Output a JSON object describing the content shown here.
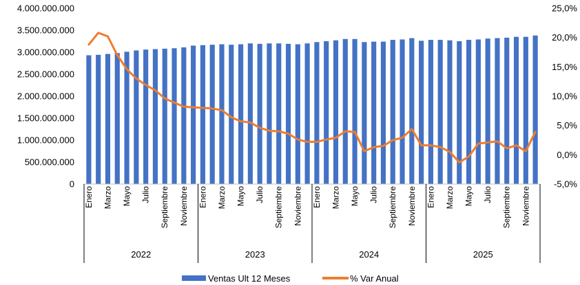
{
  "chart_data": {
    "type": "bar+line",
    "title": "",
    "years": [
      "2022",
      "2023",
      "2024",
      "2025"
    ],
    "month_labels": [
      "Enero",
      "",
      "Marzo",
      "",
      "Mayo",
      "",
      "Julio",
      "",
      "Septiembre",
      "",
      "Noviembre",
      ""
    ],
    "y_left": {
      "min": 0,
      "max": 4000000000,
      "step": 500000000,
      "tick_labels": [
        "0",
        "500.000.000",
        "1.000.000.000",
        "1.500.000.000",
        "2.000.000.000",
        "2.500.000.000",
        "3.000.000.000",
        "3.500.000.000",
        "4.000.000.000"
      ]
    },
    "y_right": {
      "min": -5,
      "max": 25,
      "step": 5,
      "tick_labels": [
        "-5,0%",
        "0,0%",
        "5,0%",
        "10,0%",
        "15,0%",
        "20,0%",
        "25,0%"
      ]
    },
    "series": [
      {
        "name": "Ventas Ult 12 Meses",
        "type": "bar",
        "axis": "left",
        "color": "#4472C4",
        "values": [
          2930000000,
          2940000000,
          2960000000,
          2980000000,
          3010000000,
          3040000000,
          3060000000,
          3070000000,
          3080000000,
          3090000000,
          3110000000,
          3150000000,
          3160000000,
          3170000000,
          3180000000,
          3170000000,
          3180000000,
          3200000000,
          3190000000,
          3200000000,
          3200000000,
          3190000000,
          3180000000,
          3200000000,
          3230000000,
          3250000000,
          3270000000,
          3300000000,
          3300000000,
          3230000000,
          3240000000,
          3240000000,
          3280000000,
          3290000000,
          3320000000,
          3260000000,
          3280000000,
          3280000000,
          3270000000,
          3250000000,
          3280000000,
          3290000000,
          3310000000,
          3320000000,
          3330000000,
          3350000000,
          3350000000,
          3380000000
        ]
      },
      {
        "name": "% Var Anual",
        "type": "line",
        "axis": "right",
        "color": "#ED7D31",
        "values": [
          18.8,
          20.8,
          20.2,
          17.0,
          14.6,
          13.0,
          11.9,
          11.0,
          9.6,
          8.9,
          8.2,
          8.1,
          8.0,
          7.9,
          7.6,
          6.4,
          5.7,
          5.5,
          4.6,
          4.1,
          4.0,
          3.6,
          2.6,
          2.2,
          2.2,
          2.6,
          2.9,
          4.0,
          3.9,
          0.6,
          1.3,
          1.5,
          2.5,
          2.9,
          4.4,
          1.6,
          1.6,
          1.3,
          0.5,
          -1.3,
          -0.3,
          1.9,
          2.1,
          2.3,
          1.1,
          1.6,
          0.6,
          3.9
        ]
      }
    ],
    "legend_position": "bottom"
  }
}
